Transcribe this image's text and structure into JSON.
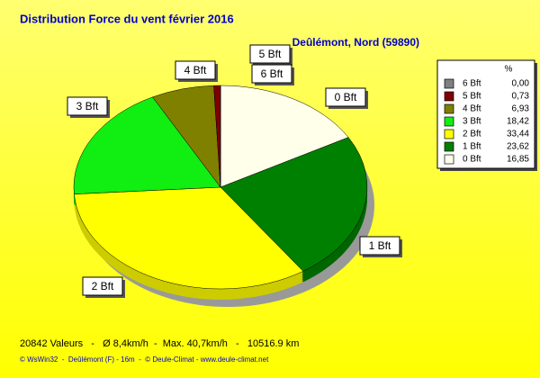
{
  "chart_data": {
    "type": "pie",
    "title": "Distribution Force du vent  février 2016",
    "subtitle": "Deûlémont, Nord (59890)",
    "categories": [
      "0 Bft",
      "1 Bft",
      "2 Bft",
      "3 Bft",
      "4 Bft",
      "5 Bft",
      "6 Bft"
    ],
    "values": [
      16.85,
      23.62,
      33.44,
      18.42,
      6.93,
      0.73,
      0.0
    ],
    "value_labels": [
      "16,85",
      "23,62",
      "33,44",
      "18,42",
      "6,93",
      "0,73",
      "0,00"
    ],
    "colors": [
      "#ffffea",
      "#008000",
      "#ffff00",
      "#11ee11",
      "#808000",
      "#800000",
      "#808080"
    ],
    "legend_title": "%",
    "legend": "right",
    "footer": "20842 Valeurs   -   Ø 8,4km/h  -  Max. 40,7km/h   -   10516.9 km",
    "credit": "© WsWin32  -  Deûlémont (F) - 16m  -  © Deule-Climat - www.deule-climat.net"
  }
}
